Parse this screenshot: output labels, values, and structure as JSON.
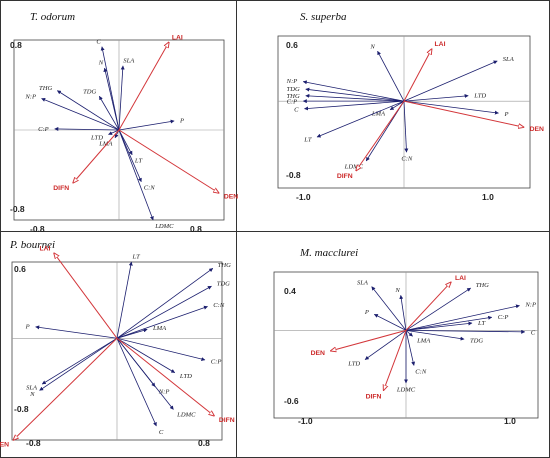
{
  "colors": {
    "species": "#1c1f6e",
    "environment": "#d3363a",
    "zero_line": "#9a9a9a",
    "frame": "#444444",
    "panel_border": "#333333"
  },
  "chart_data": [
    {
      "type": "biplot",
      "title": "T. odorum",
      "xlim": [
        -0.8,
        0.8
      ],
      "ylim": [
        -0.8,
        0.8
      ],
      "x_ticks": [
        "-0.8",
        "0.8"
      ],
      "y_ticks": [
        "0.8",
        "-0.8"
      ],
      "species": [
        {
          "name": "C",
          "x": -0.13,
          "y": 0.74
        },
        {
          "name": "SLA",
          "x": 0.03,
          "y": 0.57
        },
        {
          "name": "N",
          "x": -0.11,
          "y": 0.55
        },
        {
          "name": "THG",
          "x": -0.47,
          "y": 0.35
        },
        {
          "name": "TDG",
          "x": -0.15,
          "y": 0.3
        },
        {
          "name": "N:P",
          "x": -0.59,
          "y": 0.28
        },
        {
          "name": "C:P",
          "x": -0.49,
          "y": 0.01
        },
        {
          "name": "LTD",
          "x": -0.08,
          "y": -0.04
        },
        {
          "name": "P",
          "x": 0.42,
          "y": 0.08
        },
        {
          "name": "LMA",
          "x": -0.03,
          "y": -0.07
        },
        {
          "name": "LT",
          "x": 0.1,
          "y": -0.22
        },
        {
          "name": "C:N",
          "x": 0.17,
          "y": -0.46
        },
        {
          "name": "LDMC",
          "x": 0.26,
          "y": -0.8
        }
      ],
      "environment": [
        {
          "name": "LAI",
          "x": 0.38,
          "y": 0.78
        },
        {
          "name": "DEN",
          "x": 0.76,
          "y": -0.56
        },
        {
          "name": "DIFN",
          "x": -0.35,
          "y": -0.47
        }
      ]
    },
    {
      "type": "biplot",
      "title": "S. superba",
      "xlim": [
        -1.0,
        1.0
      ],
      "ylim": [
        -0.8,
        0.6
      ],
      "x_ticks": [
        "-1.0",
        "1.0"
      ],
      "y_ticks": [
        "0.6",
        "-0.8"
      ],
      "species": [
        {
          "name": "N",
          "x": -0.21,
          "y": 0.46
        },
        {
          "name": "SLA",
          "x": 0.74,
          "y": 0.37
        },
        {
          "name": "N:P",
          "x": -0.8,
          "y": 0.18
        },
        {
          "name": "TDG",
          "x": -0.78,
          "y": 0.11
        },
        {
          "name": "THG",
          "x": -0.78,
          "y": 0.05
        },
        {
          "name": "C:P",
          "x": -0.8,
          "y": 0.0
        },
        {
          "name": "LTD",
          "x": 0.51,
          "y": 0.05
        },
        {
          "name": "C",
          "x": -0.79,
          "y": -0.07
        },
        {
          "name": "LMA",
          "x": -0.11,
          "y": -0.08
        },
        {
          "name": "P",
          "x": 0.75,
          "y": -0.11
        },
        {
          "name": "LT",
          "x": -0.69,
          "y": -0.33
        },
        {
          "name": "C:N",
          "x": 0.02,
          "y": -0.47
        },
        {
          "name": "LDMC",
          "x": -0.3,
          "y": -0.55
        }
      ],
      "environment": [
        {
          "name": "LAI",
          "x": 0.22,
          "y": 0.48
        },
        {
          "name": "DEN",
          "x": 0.95,
          "y": -0.24
        },
        {
          "name": "DIFN",
          "x": -0.38,
          "y": -0.64
        }
      ]
    },
    {
      "type": "biplot",
      "title": "P. bournei",
      "xlim": [
        -0.8,
        0.8
      ],
      "ylim": [
        -0.8,
        0.6
      ],
      "x_ticks": [
        "-0.8",
        "0.8"
      ],
      "y_ticks": [
        "0.6",
        "-0.8"
      ],
      "species": [
        {
          "name": "LT",
          "x": 0.11,
          "y": 0.6
        },
        {
          "name": "THG",
          "x": 0.73,
          "y": 0.55
        },
        {
          "name": "TDG",
          "x": 0.72,
          "y": 0.41
        },
        {
          "name": "C:N",
          "x": 0.69,
          "y": 0.25
        },
        {
          "name": "LMA",
          "x": 0.23,
          "y": 0.07
        },
        {
          "name": "P",
          "x": -0.62,
          "y": 0.09
        },
        {
          "name": "C:P",
          "x": 0.67,
          "y": -0.17
        },
        {
          "name": "LTD",
          "x": 0.44,
          "y": -0.27
        },
        {
          "name": "SLA",
          "x": -0.57,
          "y": -0.36
        },
        {
          "name": "N:P",
          "x": 0.29,
          "y": -0.38
        },
        {
          "name": "N",
          "x": -0.59,
          "y": -0.41
        },
        {
          "name": "LDMC",
          "x": 0.43,
          "y": -0.56
        },
        {
          "name": "C",
          "x": 0.3,
          "y": -0.69
        }
      ],
      "environment": [
        {
          "name": "LAI",
          "x": -0.48,
          "y": 0.67
        },
        {
          "name": "DEN",
          "x": -0.79,
          "y": -0.8
        },
        {
          "name": "DIFN",
          "x": 0.74,
          "y": -0.61
        }
      ]
    },
    {
      "type": "biplot",
      "title": "M. macclurei",
      "xlim": [
        -1.0,
        1.0
      ],
      "ylim": [
        -0.6,
        0.4
      ],
      "x_ticks": [
        "-1.0",
        "1.0"
      ],
      "y_ticks": [
        "0.4",
        "-0.6"
      ],
      "species": [
        {
          "name": "SLA",
          "x": -0.26,
          "y": 0.3
        },
        {
          "name": "N",
          "x": -0.04,
          "y": 0.24
        },
        {
          "name": "THG",
          "x": 0.49,
          "y": 0.29
        },
        {
          "name": "N:P",
          "x": 0.86,
          "y": 0.17
        },
        {
          "name": "P",
          "x": -0.24,
          "y": 0.11
        },
        {
          "name": "C:P",
          "x": 0.65,
          "y": 0.09
        },
        {
          "name": "LT",
          "x": 0.5,
          "y": 0.05
        },
        {
          "name": "C",
          "x": 0.9,
          "y": -0.01
        },
        {
          "name": "LMA",
          "x": 0.05,
          "y": -0.04
        },
        {
          "name": "TDG",
          "x": 0.44,
          "y": -0.06
        },
        {
          "name": "LTD",
          "x": -0.31,
          "y": -0.2
        },
        {
          "name": "C:N",
          "x": 0.06,
          "y": -0.24
        },
        {
          "name": "LDMC",
          "x": 0.0,
          "y": -0.36
        }
      ],
      "environment": [
        {
          "name": "LAI",
          "x": 0.34,
          "y": 0.33
        },
        {
          "name": "DEN",
          "x": -0.57,
          "y": -0.14
        },
        {
          "name": "DIFN",
          "x": -0.17,
          "y": -0.41
        }
      ]
    }
  ]
}
